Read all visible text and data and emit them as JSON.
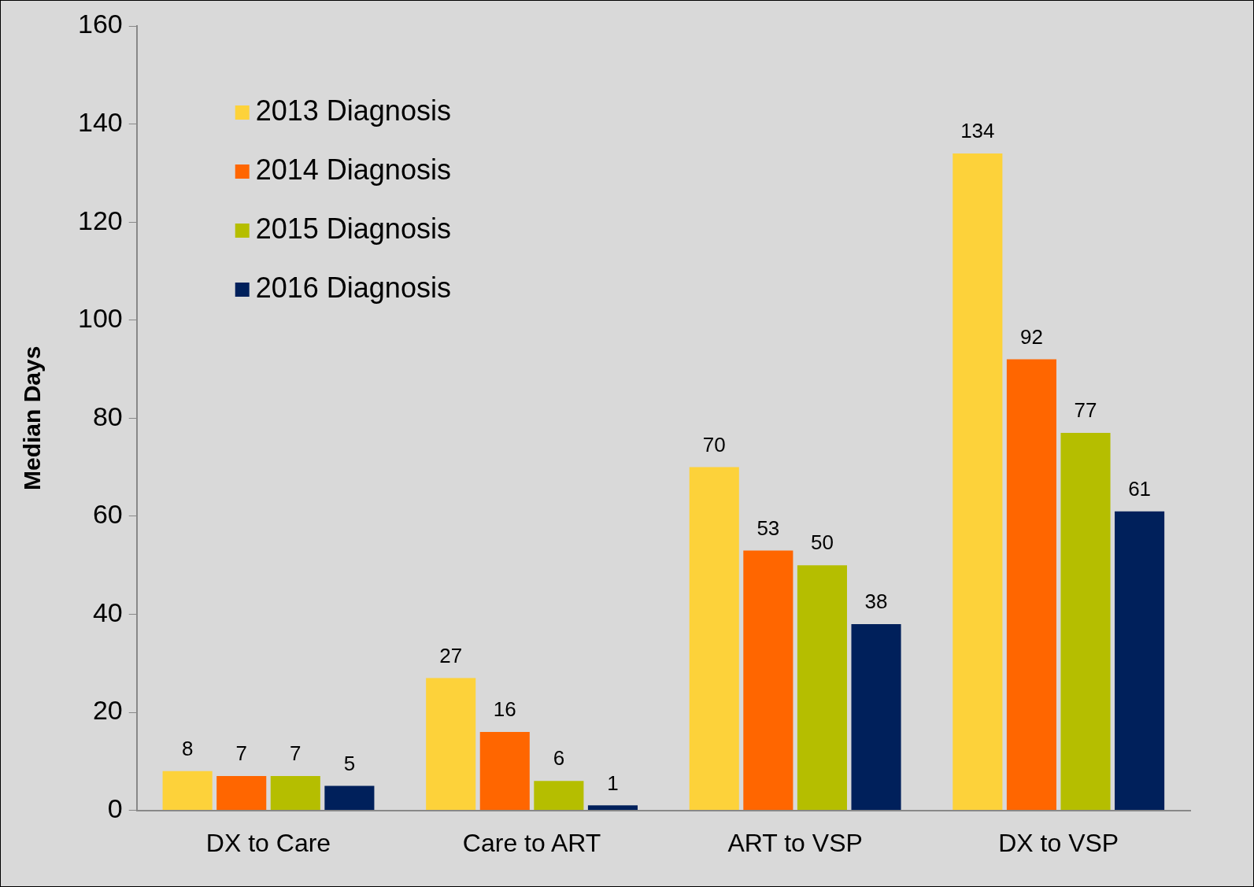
{
  "chart_data": {
    "type": "bar",
    "ylabel": "Median Days",
    "categories": [
      "DX to Care",
      "Care to ART",
      "ART to VSP",
      "DX to VSP"
    ],
    "series": [
      {
        "name": "2013 Diagnosis",
        "color": "#fdd23a",
        "values": [
          8,
          27,
          70,
          134
        ]
      },
      {
        "name": "2014 Diagnosis",
        "color": "#ff6600",
        "values": [
          7,
          16,
          53,
          92
        ]
      },
      {
        "name": "2015 Diagnosis",
        "color": "#b5be00",
        "values": [
          7,
          6,
          50,
          77
        ]
      },
      {
        "name": "2016 Diagnosis",
        "color": "#00205b",
        "values": [
          5,
          1,
          38,
          61
        ]
      }
    ],
    "ylim": [
      0,
      160
    ],
    "yticks": [
      0,
      20,
      40,
      60,
      80,
      100,
      120,
      140,
      160
    ],
    "grid": false,
    "legend": "top left",
    "data_labels": true
  }
}
